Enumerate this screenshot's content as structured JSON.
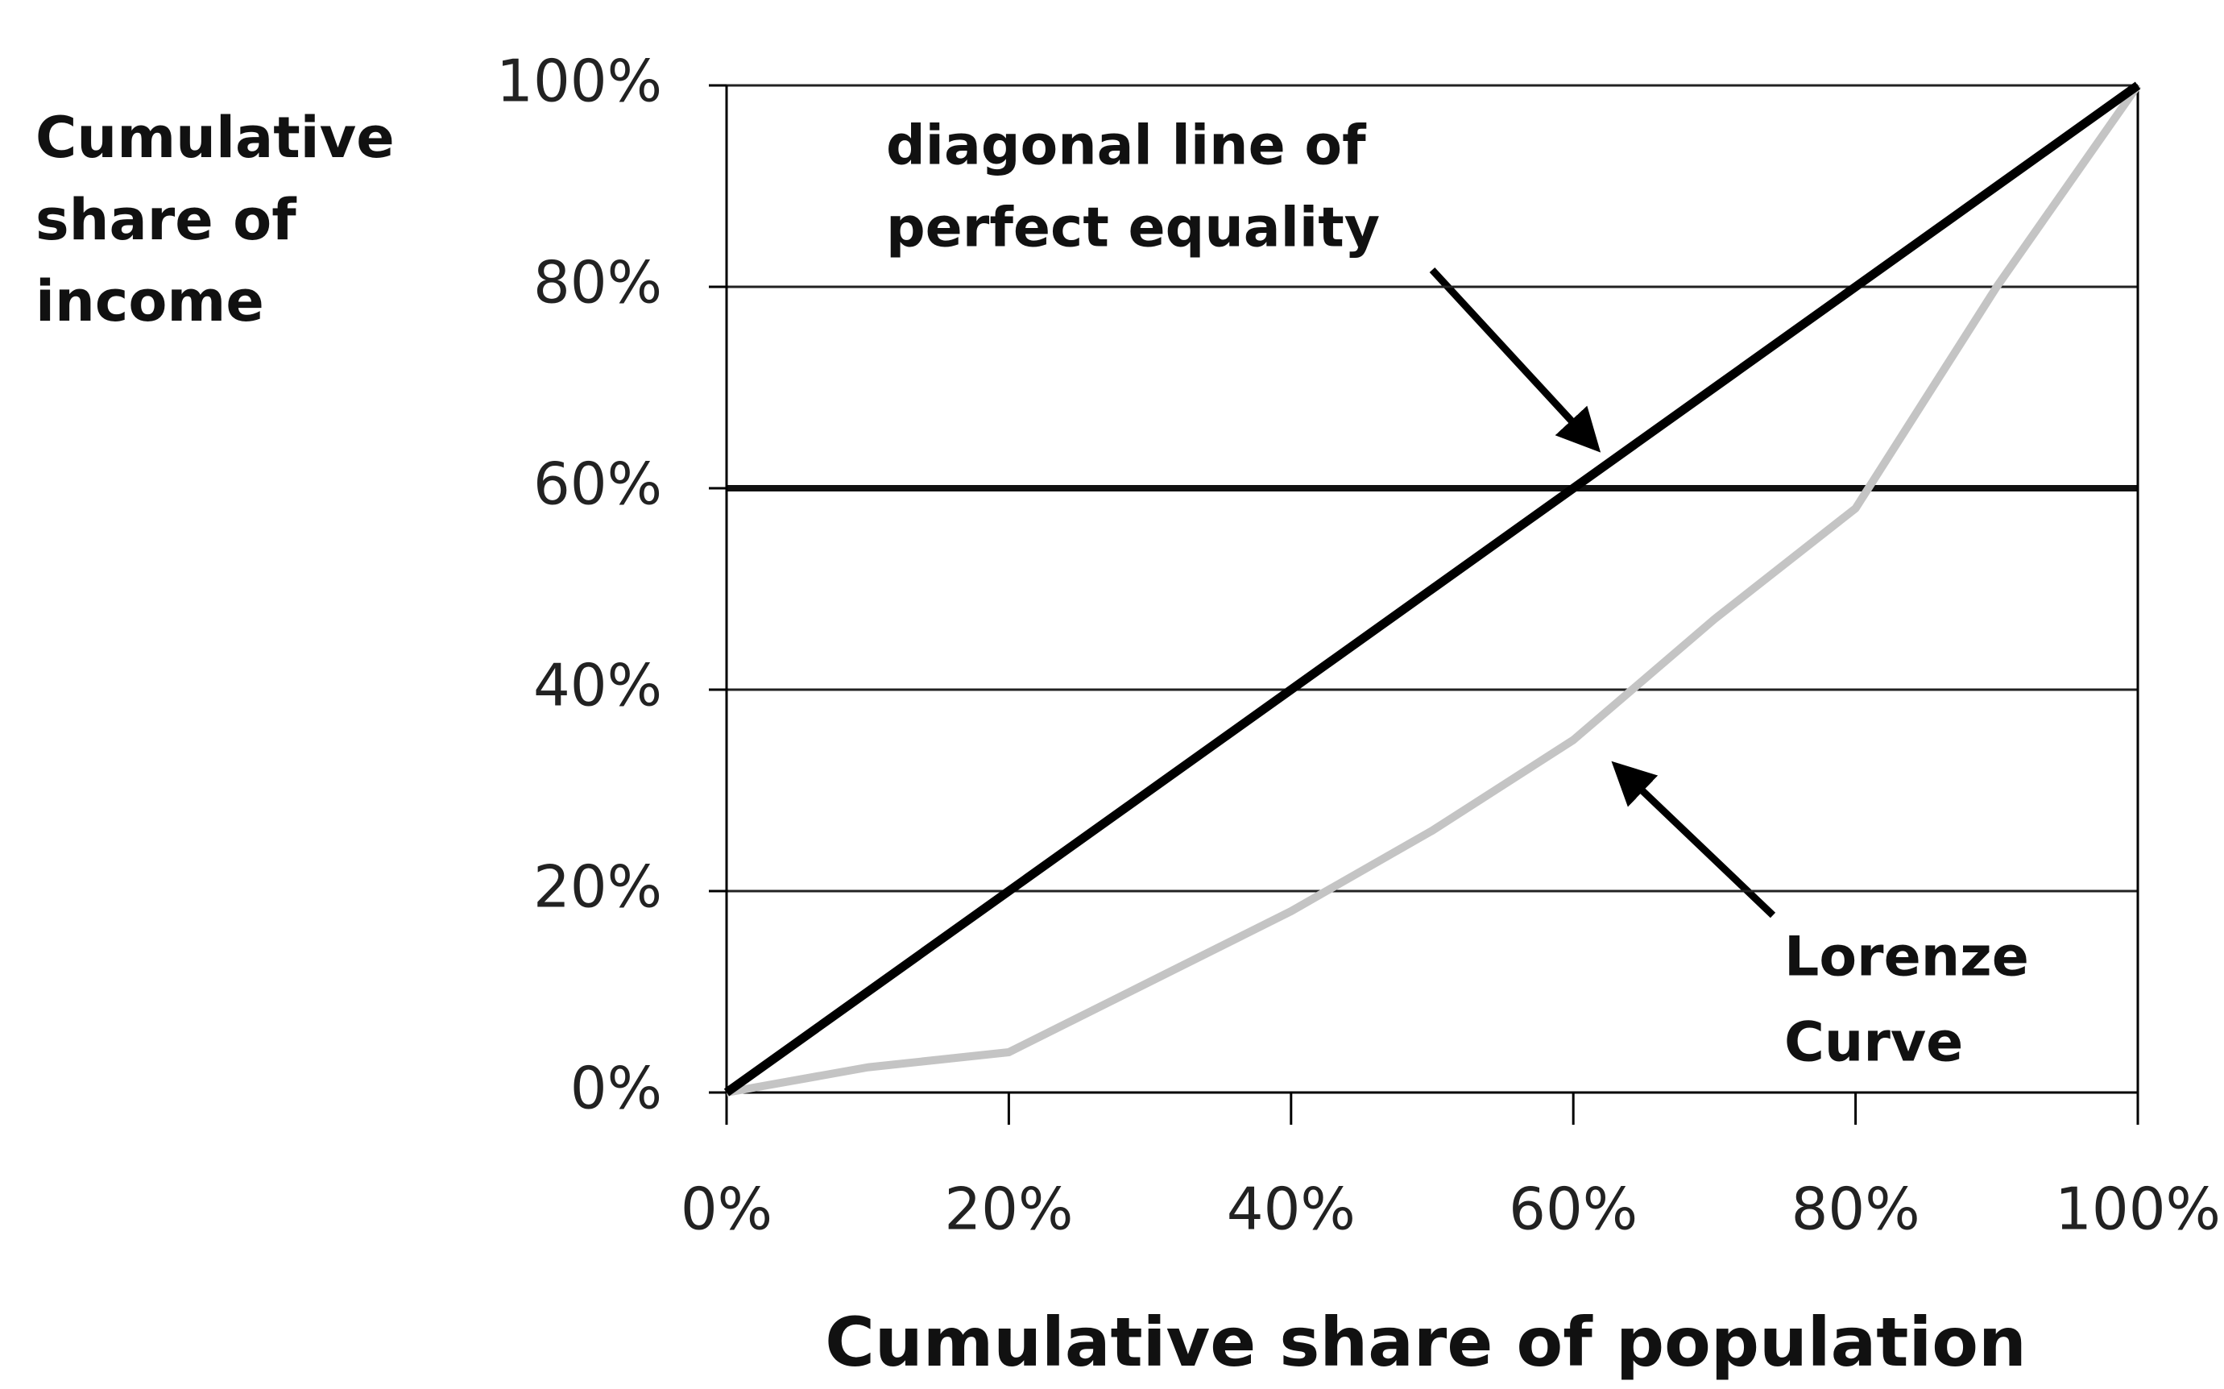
{
  "chart_data": {
    "type": "line",
    "xlabel": "Cumulative share of population",
    "ylabel": [
      "Cumulative",
      "share of",
      "income"
    ],
    "x": [
      0,
      10,
      20,
      30,
      40,
      50,
      60,
      70,
      80,
      90,
      100
    ],
    "series": [
      {
        "color": "#000000",
        "values": [
          0,
          10,
          20,
          30,
          40,
          50,
          60,
          70,
          80,
          90,
          100
        ]
      },
      {
        "color": "#c4c4c4",
        "values": [
          0,
          2.5,
          4,
          11,
          18,
          26,
          35,
          47,
          58,
          80,
          100
        ]
      }
    ],
    "annotations": [
      {
        "lines": [
          "diagonal line of",
          "perfect equality"
        ]
      },
      {
        "lines": [
          "Lorenze",
          "Curve"
        ]
      }
    ],
    "xlim": [
      0,
      100
    ],
    "ylim": [
      0,
      100
    ],
    "xticks": [
      {
        "value": 0,
        "label": "0%"
      },
      {
        "value": 20,
        "label": "20%"
      },
      {
        "value": 40,
        "label": "40%"
      },
      {
        "value": 60,
        "label": "60%"
      },
      {
        "value": 80,
        "label": "80%"
      },
      {
        "value": 100,
        "label": "100%"
      }
    ],
    "yticks": [
      {
        "value": 0,
        "label": "0%"
      },
      {
        "value": 20,
        "label": "20%"
      },
      {
        "value": 40,
        "label": "40%"
      },
      {
        "value": 60,
        "label": "60%"
      },
      {
        "value": 80,
        "label": "80%"
      },
      {
        "value": 100,
        "label": "100%"
      }
    ],
    "grid": true,
    "reference_line": 60
  }
}
